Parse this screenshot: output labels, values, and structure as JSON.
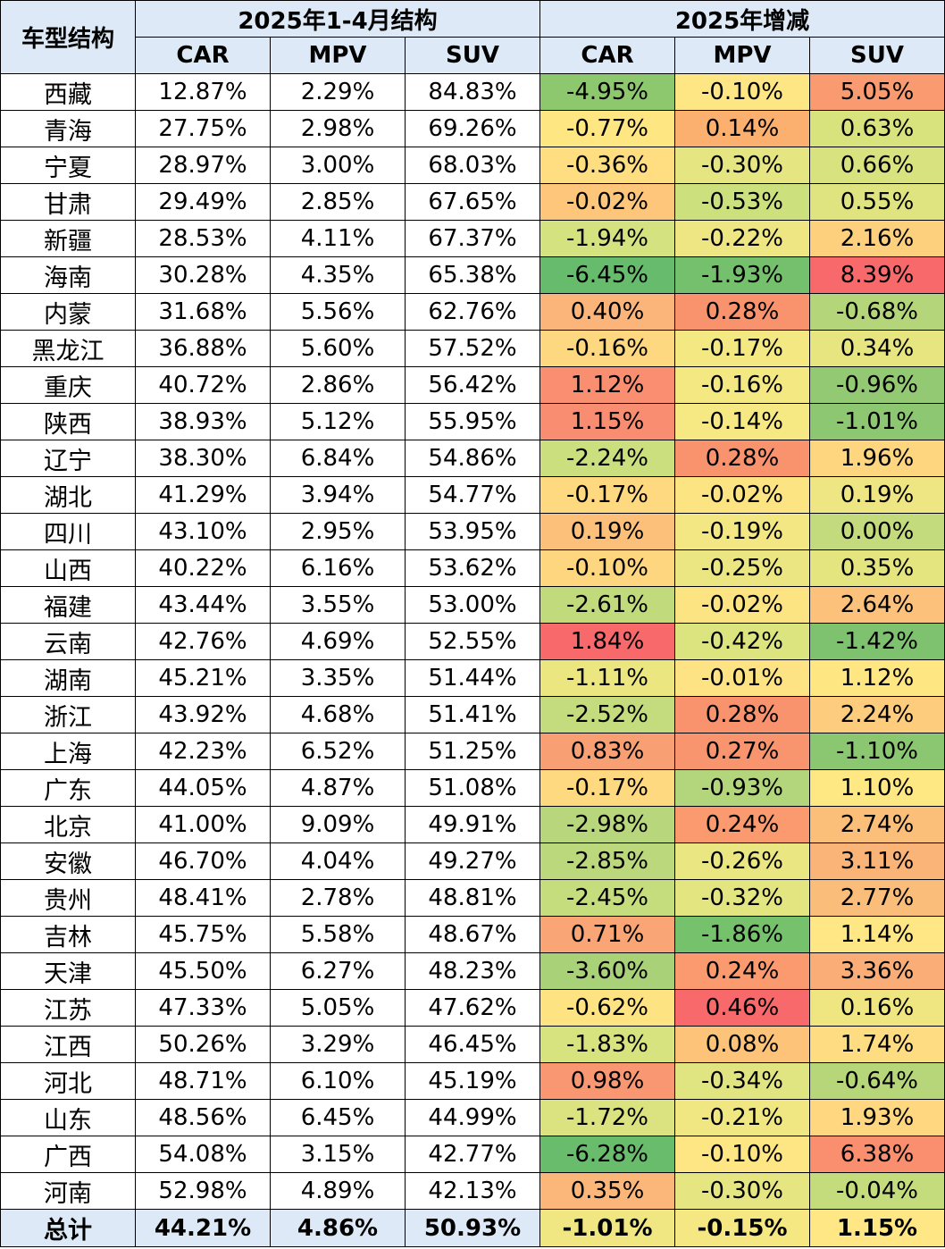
{
  "header": {
    "corner": "车型结构",
    "group1": "2025年1-4月结构",
    "group2": "2025年增减",
    "cols": [
      "CAR",
      "MPV",
      "SUV",
      "CAR",
      "MPV",
      "SUV"
    ]
  },
  "rows": [
    {
      "prov": "西藏",
      "s": [
        "12.87%",
        "2.29%",
        "84.83%"
      ],
      "d": [
        "-4.95%",
        "-0.10%",
        "5.05%"
      ],
      "c": [
        "#8ec86e",
        "#fde683",
        "#f99a70"
      ]
    },
    {
      "prov": "青海",
      "s": [
        "27.75%",
        "2.98%",
        "69.26%"
      ],
      "d": [
        "-0.77%",
        "0.14%",
        "0.63%"
      ],
      "c": [
        "#fee683",
        "#fbb06f",
        "#d9e37e"
      ]
    },
    {
      "prov": "宁夏",
      "s": [
        "28.97%",
        "3.00%",
        "68.03%"
      ],
      "d": [
        "-0.36%",
        "-0.30%",
        "0.66%"
      ],
      "c": [
        "#fede80",
        "#e5e582",
        "#d8e27e"
      ]
    },
    {
      "prov": "甘肃",
      "s": [
        "29.49%",
        "2.85%",
        "67.65%"
      ],
      "d": [
        "-0.02%",
        "-0.53%",
        "0.55%"
      ],
      "c": [
        "#fdc67b",
        "#cde07e",
        "#dfe380"
      ]
    },
    {
      "prov": "新疆",
      "s": [
        "28.53%",
        "4.11%",
        "67.37%"
      ],
      "d": [
        "-1.94%",
        "-0.22%",
        "2.16%"
      ],
      "c": [
        "#d4e27f",
        "#eee682",
        "#fdd07e"
      ]
    },
    {
      "prov": "海南",
      "s": [
        "30.28%",
        "4.35%",
        "65.38%"
      ],
      "d": [
        "-6.45%",
        "-1.93%",
        "8.39%"
      ],
      "c": [
        "#66bb6d",
        "#74c06c",
        "#f8696b"
      ]
    },
    {
      "prov": "内蒙",
      "s": [
        "31.68%",
        "5.56%",
        "62.76%"
      ],
      "d": [
        "0.40%",
        "0.28%",
        "-0.68%"
      ],
      "c": [
        "#fbb47a",
        "#f9936d",
        "#b5d57a"
      ]
    },
    {
      "prov": "黑龙江",
      "s": [
        "36.88%",
        "5.60%",
        "57.52%"
      ],
      "d": [
        "-0.16%",
        "-0.17%",
        "0.34%"
      ],
      "c": [
        "#fed880",
        "#f4e882",
        "#e6e580"
      ]
    },
    {
      "prov": "重庆",
      "s": [
        "40.72%",
        "2.86%",
        "56.42%"
      ],
      "d": [
        "1.12%",
        "-0.16%",
        "-0.96%"
      ],
      "c": [
        "#f98e71",
        "#f4e882",
        "#93c972"
      ]
    },
    {
      "prov": "陕西",
      "s": [
        "38.93%",
        "5.12%",
        "55.95%"
      ],
      "d": [
        "1.15%",
        "-0.14%",
        "-1.01%"
      ],
      "c": [
        "#f98d71",
        "#f6e883",
        "#8ec771"
      ]
    },
    {
      "prov": "辽宁",
      "s": [
        "38.30%",
        "6.84%",
        "54.86%"
      ],
      "d": [
        "-2.24%",
        "0.28%",
        "1.96%"
      ],
      "c": [
        "#cbdf7e",
        "#f9936d",
        "#fed680"
      ]
    },
    {
      "prov": "湖北",
      "s": [
        "41.29%",
        "3.94%",
        "54.77%"
      ],
      "d": [
        "-0.17%",
        "-0.02%",
        "0.19%"
      ],
      "c": [
        "#fed980",
        "#fde483",
        "#eee682"
      ]
    },
    {
      "prov": "四川",
      "s": [
        "43.10%",
        "2.95%",
        "53.95%"
      ],
      "d": [
        "0.19%",
        "-0.19%",
        "0.00%"
      ],
      "c": [
        "#fcc07a",
        "#f2e782",
        "#c3db7c"
      ]
    },
    {
      "prov": "山西",
      "s": [
        "40.22%",
        "6.16%",
        "53.62%"
      ],
      "d": [
        "-0.10%",
        "-0.25%",
        "0.35%"
      ],
      "c": [
        "#fed67f",
        "#ebe682",
        "#e5e580"
      ]
    },
    {
      "prov": "福建",
      "s": [
        "43.44%",
        "3.55%",
        "53.00%"
      ],
      "d": [
        "-2.61%",
        "-0.02%",
        "2.64%"
      ],
      "c": [
        "#c1da7c",
        "#fde483",
        "#fcc27b"
      ]
    },
    {
      "prov": "云南",
      "s": [
        "42.76%",
        "4.69%",
        "52.55%"
      ],
      "d": [
        "1.84%",
        "-0.42%",
        "-1.42%"
      ],
      "c": [
        "#f8696b",
        "#dce480",
        "#7ec270"
      ]
    },
    {
      "prov": "湖南",
      "s": [
        "45.21%",
        "3.35%",
        "51.44%"
      ],
      "d": [
        "-1.11%",
        "-0.01%",
        "1.12%"
      ],
      "c": [
        "#ece681",
        "#fde383",
        "#fee783"
      ]
    },
    {
      "prov": "浙江",
      "s": [
        "43.92%",
        "4.68%",
        "51.41%"
      ],
      "d": [
        "-2.52%",
        "0.28%",
        "2.24%"
      ],
      "c": [
        "#c4dc7d",
        "#f9936d",
        "#fdcc7d"
      ]
    },
    {
      "prov": "上海",
      "s": [
        "42.23%",
        "6.52%",
        "51.25%"
      ],
      "d": [
        "0.83%",
        "0.27%",
        "-1.10%"
      ],
      "c": [
        "#f99f74",
        "#f9956e",
        "#8bc671"
      ]
    },
    {
      "prov": "广东",
      "s": [
        "44.05%",
        "4.87%",
        "51.08%"
      ],
      "d": [
        "-0.17%",
        "-0.93%",
        "1.10%"
      ],
      "c": [
        "#fed980",
        "#b3d57b",
        "#fee884"
      ]
    },
    {
      "prov": "北京",
      "s": [
        "41.00%",
        "9.09%",
        "49.91%"
      ],
      "d": [
        "-2.98%",
        "0.24%",
        "2.74%"
      ],
      "c": [
        "#b8d67b",
        "#fa9a6e",
        "#fbbf7a"
      ]
    },
    {
      "prov": "安徽",
      "s": [
        "46.70%",
        "4.04%",
        "49.27%"
      ],
      "d": [
        "-2.85%",
        "-0.26%",
        "3.11%"
      ],
      "c": [
        "#bcd87c",
        "#eae682",
        "#fbb478"
      ]
    },
    {
      "prov": "贵州",
      "s": [
        "48.41%",
        "2.78%",
        "48.81%"
      ],
      "d": [
        "-2.45%",
        "-0.32%",
        "2.77%"
      ],
      "c": [
        "#c6dd7d",
        "#e3e581",
        "#fbbe7a"
      ]
    },
    {
      "prov": "吉林",
      "s": [
        "45.75%",
        "5.58%",
        "48.67%"
      ],
      "d": [
        "0.71%",
        "-1.86%",
        "1.14%"
      ],
      "c": [
        "#faa575",
        "#76c16c",
        "#fee784"
      ]
    },
    {
      "prov": "天津",
      "s": [
        "45.50%",
        "6.27%",
        "48.23%"
      ],
      "d": [
        "-3.60%",
        "0.24%",
        "3.36%"
      ],
      "c": [
        "#a8d178",
        "#fa9a6e",
        "#faad77"
      ]
    },
    {
      "prov": "江苏",
      "s": [
        "47.33%",
        "5.05%",
        "47.62%"
      ],
      "d": [
        "-0.62%",
        "0.46%",
        "0.16%"
      ],
      "c": [
        "#fee382",
        "#f8696b",
        "#efe682"
      ]
    },
    {
      "prov": "江西",
      "s": [
        "50.26%",
        "3.29%",
        "46.45%"
      ],
      "d": [
        "-1.83%",
        "0.08%",
        "1.74%"
      ],
      "c": [
        "#d7e37f",
        "#fcc379",
        "#fedc81"
      ]
    },
    {
      "prov": "河北",
      "s": [
        "48.71%",
        "6.10%",
        "45.19%"
      ],
      "d": [
        "0.98%",
        "-0.34%",
        "-0.64%"
      ],
      "c": [
        "#f99772",
        "#e1e581",
        "#b7d67a"
      ]
    },
    {
      "prov": "山东",
      "s": [
        "48.56%",
        "6.45%",
        "44.99%"
      ],
      "d": [
        "-1.72%",
        "-0.21%",
        "1.93%"
      ],
      "c": [
        "#dae37f",
        "#f0e782",
        "#fed780"
      ]
    },
    {
      "prov": "广西",
      "s": [
        "54.08%",
        "3.15%",
        "42.77%"
      ],
      "d": [
        "-6.28%",
        "-0.10%",
        "6.38%"
      ],
      "c": [
        "#6abc6d",
        "#fde683",
        "#f98f6f"
      ]
    },
    {
      "prov": "河南",
      "s": [
        "52.98%",
        "4.89%",
        "42.13%"
      ],
      "d": [
        "0.35%",
        "-0.30%",
        "-0.04%"
      ],
      "c": [
        "#fbb779",
        "#e5e582",
        "#c5dc7c"
      ]
    }
  ],
  "total": {
    "prov": "总计",
    "s": [
      "44.21%",
      "4.86%",
      "50.93%"
    ],
    "d": [
      "-1.01%",
      "-0.15%",
      "1.15%"
    ],
    "c": [
      "#f0e782",
      "#f5e883",
      "#fee784"
    ]
  }
}
